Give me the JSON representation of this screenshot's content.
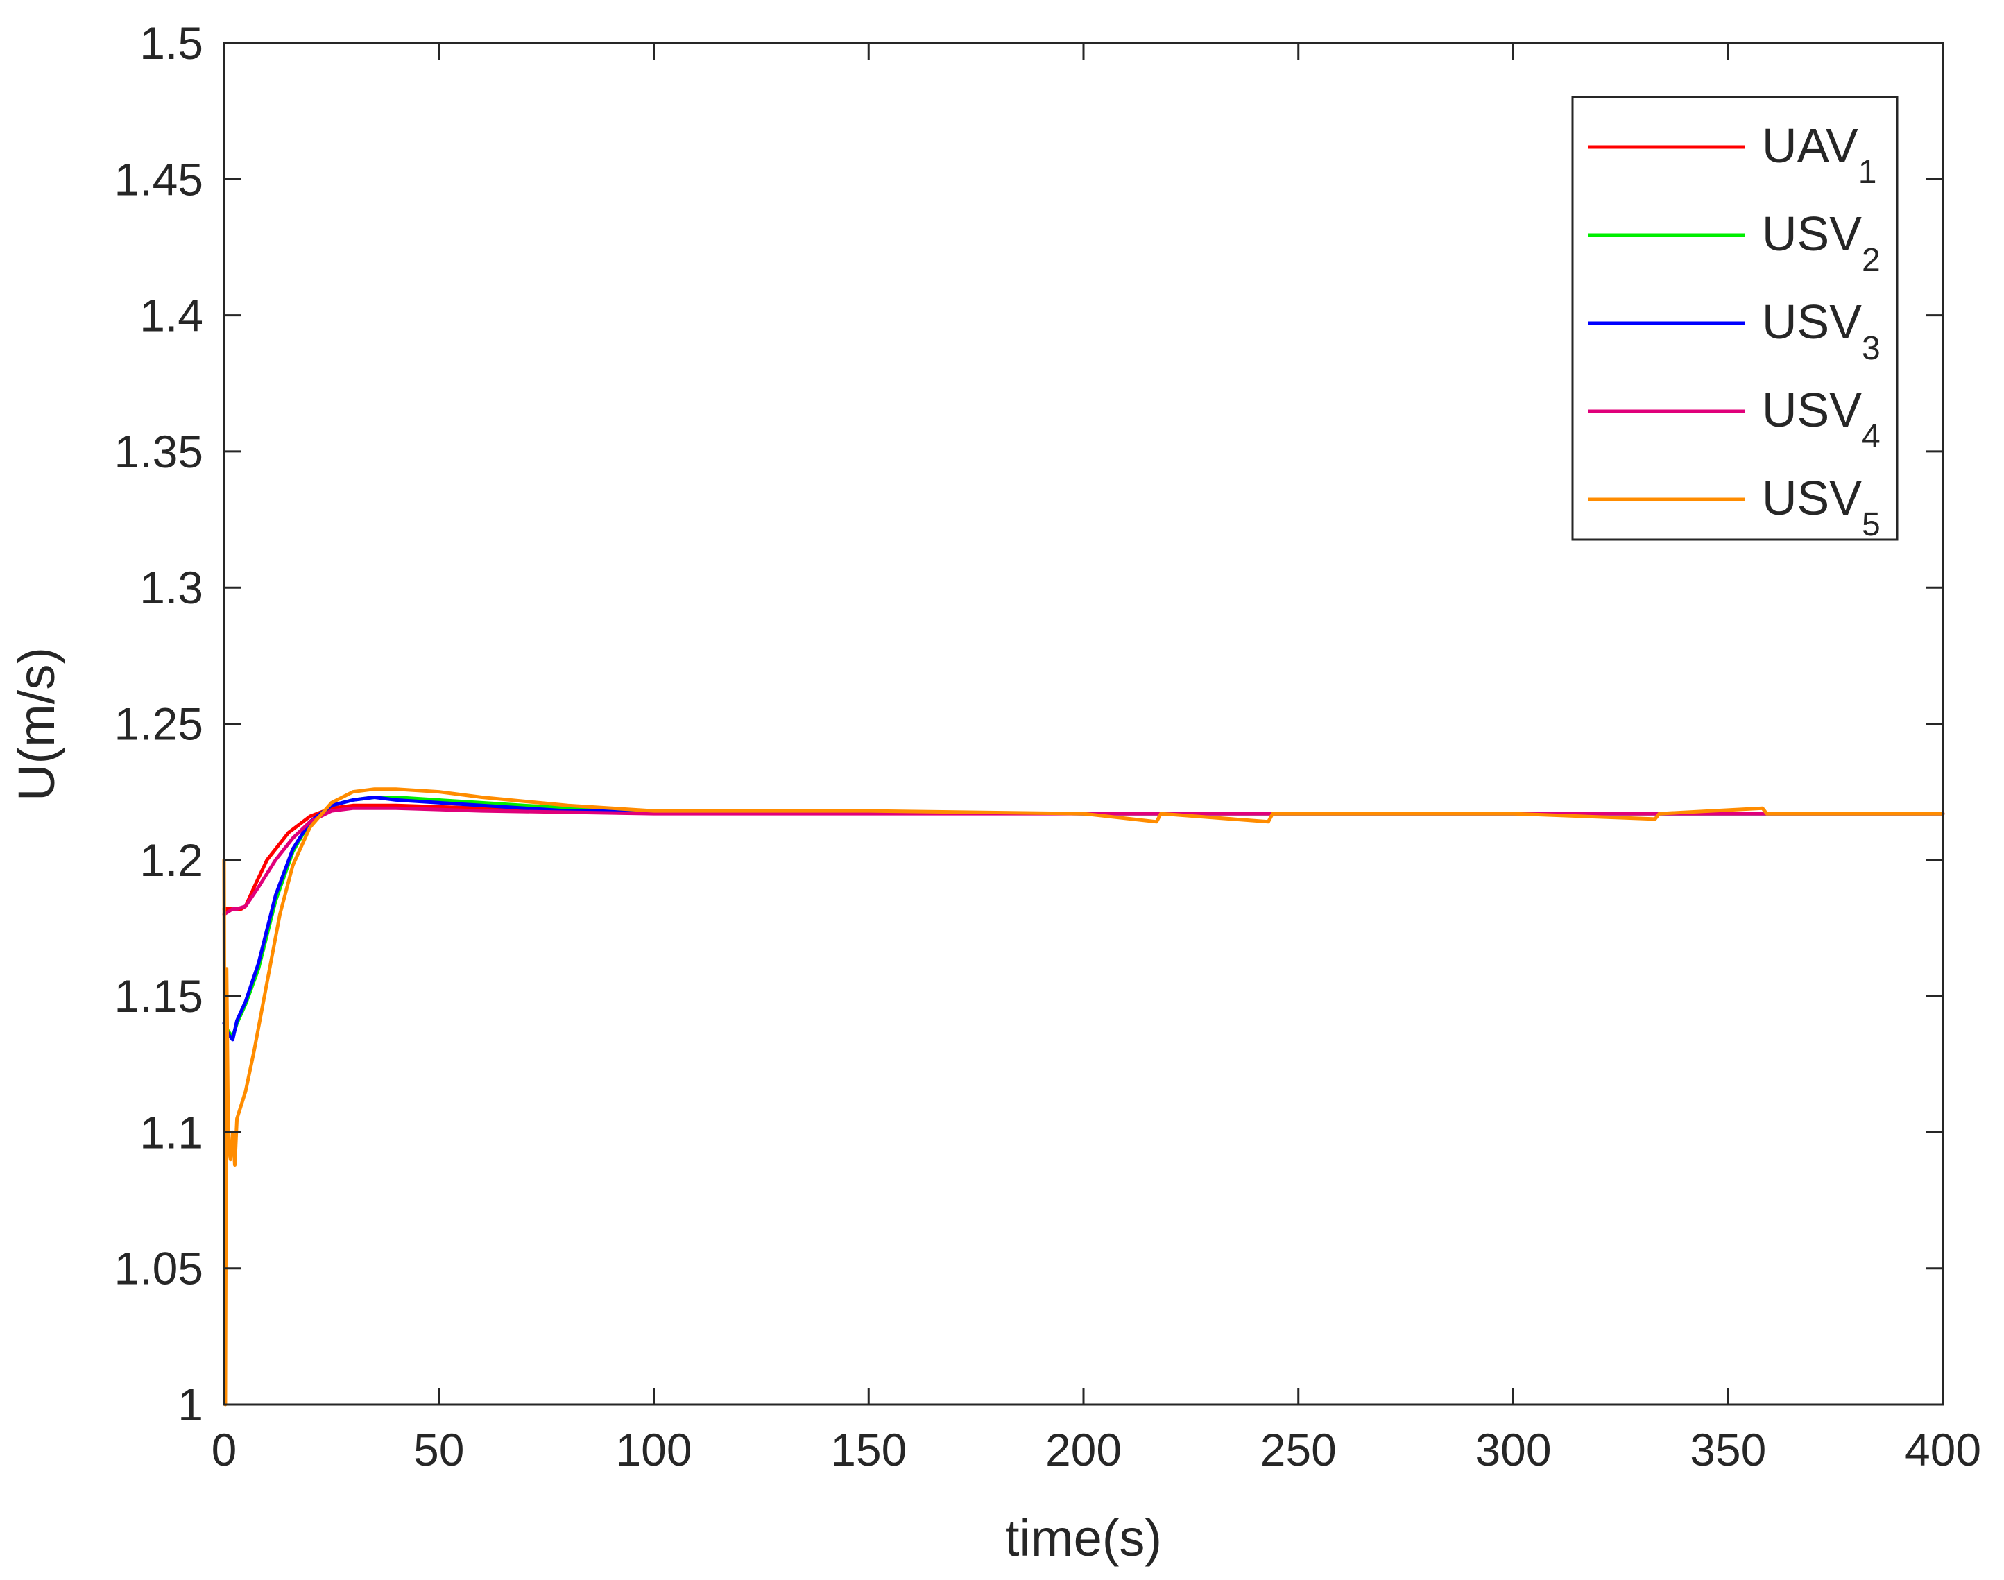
{
  "chart_data": {
    "type": "line",
    "title": "",
    "xlabel": "time(s)",
    "ylabel": "U(m/s)",
    "xlim": [
      0,
      400
    ],
    "ylim": [
      1,
      1.5
    ],
    "xticks": [
      0,
      50,
      100,
      150,
      200,
      250,
      300,
      350,
      400
    ],
    "xtick_labels": [
      "0",
      "50",
      "100",
      "150",
      "200",
      "250",
      "300",
      "350",
      "400"
    ],
    "yticks": [
      1,
      1.05,
      1.1,
      1.15,
      1.2,
      1.25,
      1.3,
      1.35,
      1.4,
      1.45,
      1.5
    ],
    "ytick_labels": [
      "1",
      "1.05",
      "1.1",
      "1.15",
      "1.2",
      "1.25",
      "1.3",
      "1.35",
      "1.4",
      "1.45",
      "1.5"
    ],
    "grid": false,
    "legend_position": "top-right",
    "series": [
      {
        "name": "UAV",
        "sub": "1",
        "color": "#ff0000",
        "x": [
          0,
          1,
          2,
          3,
          4,
          5,
          7,
          10,
          15,
          20,
          25,
          30,
          40,
          60,
          100,
          200,
          300,
          400
        ],
        "y": [
          1.182,
          1.182,
          1.182,
          1.182,
          1.182,
          1.183,
          1.19,
          1.2,
          1.21,
          1.216,
          1.219,
          1.22,
          1.22,
          1.219,
          1.218,
          1.217,
          1.217,
          1.217
        ]
      },
      {
        "name": "USV",
        "sub": "2",
        "color": "#00ee00",
        "x": [
          0,
          1,
          2,
          3,
          5,
          8,
          12,
          16,
          20,
          25,
          30,
          35,
          40,
          60,
          80,
          100,
          200,
          300,
          400
        ],
        "y": [
          1.14,
          1.137,
          1.135,
          1.14,
          1.147,
          1.16,
          1.185,
          1.203,
          1.214,
          1.22,
          1.222,
          1.223,
          1.223,
          1.221,
          1.219,
          1.218,
          1.217,
          1.217,
          1.217
        ]
      },
      {
        "name": "USV",
        "sub": "3",
        "color": "#0000ff",
        "x": [
          0,
          1,
          2,
          3,
          5,
          8,
          12,
          16,
          20,
          25,
          30,
          35,
          40,
          60,
          80,
          100,
          200,
          300,
          400
        ],
        "y": [
          1.14,
          1.136,
          1.134,
          1.141,
          1.148,
          1.162,
          1.187,
          1.204,
          1.214,
          1.22,
          1.222,
          1.223,
          1.222,
          1.22,
          1.218,
          1.218,
          1.217,
          1.217,
          1.217
        ]
      },
      {
        "name": "USV",
        "sub": "4",
        "color": "#e0007a",
        "x": [
          0,
          1,
          2,
          3,
          5,
          8,
          12,
          16,
          20,
          25,
          30,
          40,
          60,
          100,
          200,
          300,
          400
        ],
        "y": [
          1.18,
          1.181,
          1.182,
          1.182,
          1.183,
          1.19,
          1.2,
          1.208,
          1.214,
          1.218,
          1.219,
          1.219,
          1.218,
          1.217,
          1.217,
          1.217,
          1.217
        ]
      },
      {
        "name": "USV",
        "sub": "5",
        "color": "#ff8c00",
        "x": [
          0,
          0.3,
          0.6,
          1,
          1.5,
          2,
          2.5,
          3,
          4,
          5,
          7,
          10,
          13,
          16,
          20,
          25,
          30,
          35,
          40,
          50,
          60,
          80,
          100,
          120,
          150,
          200,
          217,
          218,
          243,
          244,
          300,
          333,
          334,
          358,
          359,
          400
        ],
        "y": [
          1.2,
          1.0,
          1.16,
          1.095,
          1.09,
          1.1,
          1.088,
          1.105,
          1.11,
          1.115,
          1.13,
          1.155,
          1.18,
          1.198,
          1.212,
          1.221,
          1.225,
          1.226,
          1.226,
          1.225,
          1.223,
          1.22,
          1.218,
          1.218,
          1.218,
          1.217,
          1.214,
          1.217,
          1.214,
          1.217,
          1.217,
          1.215,
          1.217,
          1.219,
          1.217,
          1.217
        ]
      }
    ]
  }
}
